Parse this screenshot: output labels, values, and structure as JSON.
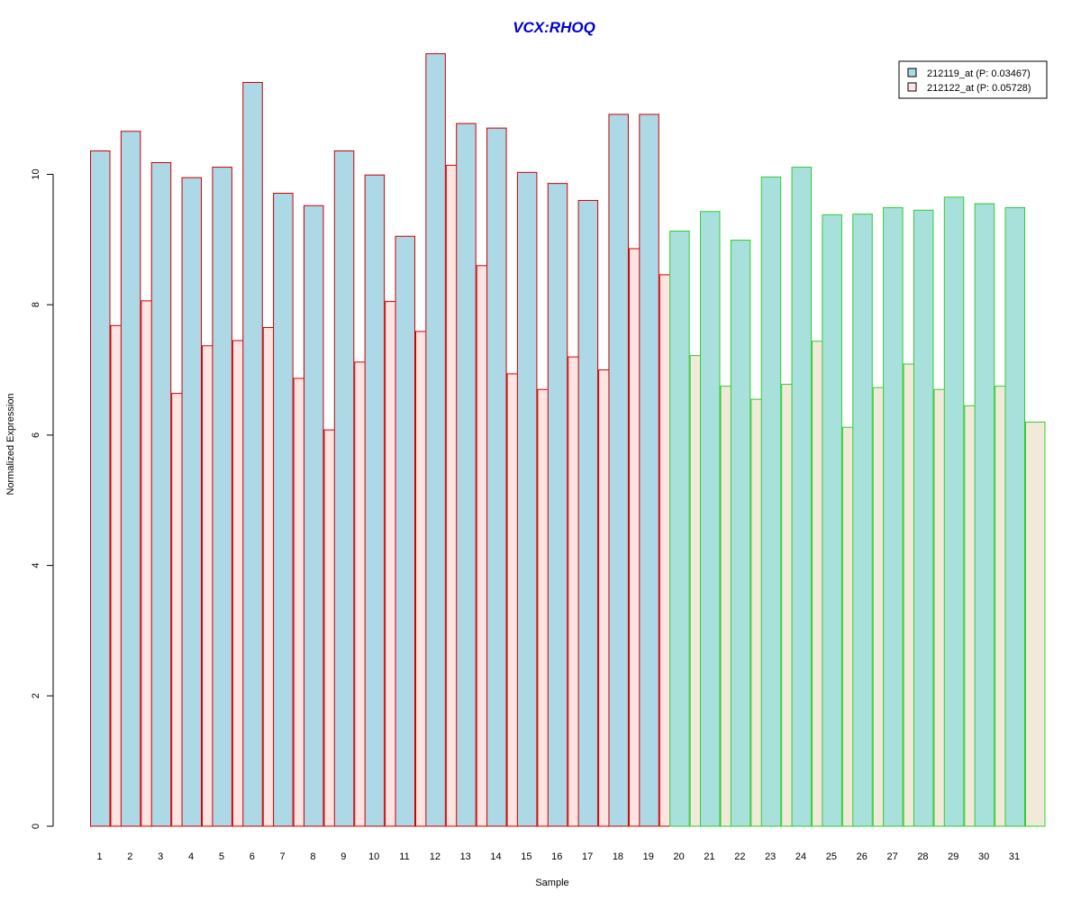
{
  "chart_data": {
    "type": "bar",
    "title": "VCX:RHOQ",
    "xlabel": "Sample",
    "ylabel": "Normalized Expression",
    "ylim": [
      0,
      12
    ],
    "yticks": [
      0,
      2,
      4,
      6,
      8,
      10
    ],
    "categories": [
      "1",
      "2",
      "3",
      "4",
      "5",
      "6",
      "7",
      "8",
      "9",
      "10",
      "11",
      "12",
      "13",
      "14",
      "15",
      "16",
      "17",
      "18",
      "19",
      "20",
      "21",
      "22",
      "23",
      "24",
      "25",
      "26",
      "27",
      "28",
      "29",
      "30",
      "31"
    ],
    "series": [
      {
        "name": "212119_at (P: 0.03467)",
        "values": [
          10.36,
          10.66,
          10.18,
          9.95,
          10.11,
          11.41,
          9.71,
          9.52,
          10.36,
          9.99,
          9.05,
          11.85,
          10.78,
          10.71,
          10.03,
          9.86,
          9.6,
          10.92,
          10.92,
          9.13,
          9.43,
          8.99,
          9.96,
          10.11,
          9.38,
          9.39,
          9.49,
          9.45,
          9.65,
          9.55,
          9.49
        ]
      },
      {
        "name": "212122_at (P: 0.05728)",
        "values": [
          7.68,
          8.06,
          6.64,
          7.37,
          7.45,
          7.65,
          6.87,
          6.08,
          7.12,
          8.05,
          7.59,
          10.14,
          8.6,
          6.94,
          6.7,
          7.2,
          7.0,
          8.86,
          8.46,
          7.22,
          6.75,
          6.55,
          6.78,
          7.44,
          6.12,
          6.73,
          7.09,
          6.7,
          6.45,
          6.75,
          6.2
        ]
      }
    ],
    "group_border_colors": [
      "#cc0000",
      "#cc0000",
      "#cc0000",
      "#cc0000",
      "#cc0000",
      "#cc0000",
      "#cc0000",
      "#cc0000",
      "#cc0000",
      "#cc0000",
      "#cc0000",
      "#cc0000",
      "#cc0000",
      "#cc0000",
      "#cc0000",
      "#cc0000",
      "#cc0000",
      "#cc0000",
      "#cc0000",
      "#33cc33",
      "#33cc33",
      "#33cc33",
      "#33cc33",
      "#33cc33",
      "#33cc33",
      "#33cc33",
      "#33cc33",
      "#33cc33",
      "#33cc33",
      "#33cc33",
      "#33cc33"
    ],
    "colors": {
      "group1_series1_fill": "#add8e6",
      "group1_series2_fill": "#ffe4e1",
      "group2_series1_fill": "#a8e0dc",
      "group2_series2_fill": "#f2ead8",
      "legend_series1_fill": "#add8e6",
      "legend_series2_fill": "#ffe4e1",
      "title_color": "#0000cc"
    },
    "legend_position": "top-right",
    "grid": false
  }
}
